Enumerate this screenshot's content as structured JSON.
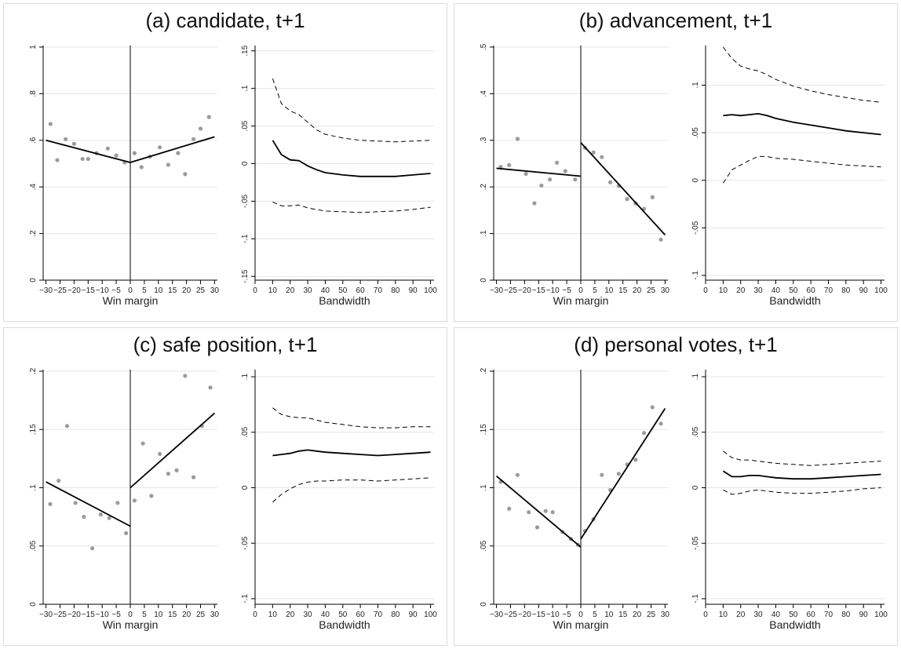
{
  "page": {
    "background": "#ffffff"
  },
  "chart_data": [
    {
      "type": "scatter",
      "title": "(a) candidate, t+1",
      "xlabel": "Win margin",
      "xlim": [
        -31,
        31
      ],
      "ylim": [
        0,
        1
      ],
      "x_ticks": [
        -30,
        -25,
        -20,
        -15,
        -10,
        -5,
        0,
        5,
        10,
        15,
        20,
        25,
        30
      ],
      "x_tick_labels": [
        "−30",
        "−25",
        "−20",
        "−15",
        "−10",
        "−5",
        "0",
        "5",
        "10",
        "15",
        "20",
        "25",
        "30"
      ],
      "y_ticks": [
        0,
        0.2,
        0.4,
        0.6,
        0.8,
        1
      ],
      "y_tick_labels": [
        "0",
        ".2",
        ".4",
        ".6",
        ".8",
        "1"
      ],
      "cutoff": 0,
      "points_x": [
        -28.4,
        -26,
        -23,
        -20,
        -17,
        -15,
        -12,
        -8,
        -5,
        -2,
        1.5,
        4,
        7,
        10.5,
        13.5,
        17,
        19.5,
        22.5,
        25,
        28
      ],
      "points_y": [
        0.67,
        0.515,
        0.605,
        0.585,
        0.52,
        0.52,
        0.545,
        0.565,
        0.535,
        0.505,
        0.545,
        0.485,
        0.53,
        0.57,
        0.495,
        0.545,
        0.455,
        0.605,
        0.65,
        0.7
      ],
      "fit_left": {
        "x": [
          -30,
          0
        ],
        "y": [
          0.6,
          0.505
        ]
      },
      "fit_right": {
        "x": [
          0,
          30
        ],
        "y": [
          0.505,
          0.615
        ]
      }
    },
    {
      "type": "line",
      "xlabel": "Bandwidth",
      "xlim": [
        0,
        102
      ],
      "ylim": [
        -0.155,
        0.155
      ],
      "x_ticks": [
        0,
        10,
        20,
        30,
        40,
        50,
        60,
        70,
        80,
        90,
        100
      ],
      "x_tick_labels": [
        "0",
        "10",
        "20",
        "30",
        "40",
        "50",
        "60",
        "70",
        "80",
        "90",
        "100"
      ],
      "y_ticks": [
        -0.15,
        -0.1,
        -0.05,
        0,
        0.05,
        0.1,
        0.15
      ],
      "y_tick_labels": [
        "-.15",
        "-.1",
        "-.05",
        "0",
        ".05",
        ".1",
        ".15"
      ],
      "x": [
        10,
        15,
        20,
        25,
        30,
        35,
        40,
        50,
        60,
        70,
        80,
        90,
        100
      ],
      "series": [
        {
          "style": "solid",
          "values": [
            0.031,
            0.012,
            0.005,
            0.004,
            -0.003,
            -0.008,
            -0.012,
            -0.015,
            -0.017,
            -0.017,
            -0.017,
            -0.015,
            -0.013
          ]
        },
        {
          "style": "dashed",
          "values": [
            0.113,
            0.08,
            0.07,
            0.065,
            0.055,
            0.045,
            0.039,
            0.034,
            0.031,
            0.03,
            0.029,
            0.03,
            0.031
          ]
        },
        {
          "style": "dashed",
          "values": [
            -0.051,
            -0.056,
            -0.056,
            -0.055,
            -0.059,
            -0.061,
            -0.063,
            -0.064,
            -0.065,
            -0.064,
            -0.063,
            -0.061,
            -0.058
          ]
        }
      ]
    },
    {
      "type": "scatter",
      "title": "(b) advancement, t+1",
      "xlabel": "Win margin",
      "xlim": [
        -31,
        31
      ],
      "ylim": [
        0,
        0.5
      ],
      "x_ticks": [
        -30,
        -25,
        -20,
        -15,
        -10,
        -5,
        0,
        5,
        10,
        15,
        20,
        25,
        30
      ],
      "x_tick_labels": [
        "−30",
        "−25",
        "−20",
        "−15",
        "−10",
        "−5",
        "0",
        "5",
        "10",
        "15",
        "20",
        "25",
        "30"
      ],
      "y_ticks": [
        0,
        0.1,
        0.2,
        0.3,
        0.4,
        0.5
      ],
      "y_tick_labels": [
        "0",
        ".1",
        ".2",
        ".3",
        ".4",
        ".5"
      ],
      "cutoff": 0,
      "points_x": [
        -28.5,
        -25.5,
        -22.5,
        -19.5,
        -16.5,
        -14,
        -11,
        -8.5,
        -5.5,
        -2,
        1.5,
        4.5,
        7.5,
        10.5,
        13.5,
        16.5,
        19.5,
        22.5,
        25.5,
        28.5
      ],
      "points_y": [
        0.243,
        0.247,
        0.303,
        0.228,
        0.165,
        0.203,
        0.216,
        0.252,
        0.234,
        0.216,
        0.284,
        0.274,
        0.264,
        0.21,
        0.202,
        0.174,
        0.165,
        0.153,
        0.178,
        0.087
      ],
      "fit_left": {
        "x": [
          -30,
          0
        ],
        "y": [
          0.24,
          0.223
        ]
      },
      "fit_right": {
        "x": [
          0,
          30
        ],
        "y": [
          0.295,
          0.097
        ]
      }
    },
    {
      "type": "line",
      "xlabel": "Bandwidth",
      "xlim": [
        0,
        102
      ],
      "ylim": [
        -0.105,
        0.14
      ],
      "x_ticks": [
        0,
        10,
        20,
        30,
        40,
        50,
        60,
        70,
        80,
        90,
        100
      ],
      "x_tick_labels": [
        "0",
        "10",
        "20",
        "30",
        "40",
        "50",
        "60",
        "70",
        "80",
        "90",
        "100"
      ],
      "y_ticks": [
        -0.1,
        -0.05,
        0,
        0.05,
        0.1
      ],
      "y_tick_labels": [
        "-.1",
        "-.05",
        "0",
        ".05",
        ".1"
      ],
      "x": [
        10,
        15,
        20,
        25,
        30,
        35,
        40,
        50,
        60,
        70,
        80,
        90,
        100
      ],
      "series": [
        {
          "style": "solid",
          "values": [
            0.068,
            0.069,
            0.068,
            0.069,
            0.07,
            0.068,
            0.065,
            0.061,
            0.058,
            0.055,
            0.052,
            0.05,
            0.048
          ]
        },
        {
          "style": "dashed",
          "values": [
            0.14,
            0.128,
            0.12,
            0.117,
            0.115,
            0.111,
            0.106,
            0.099,
            0.094,
            0.09,
            0.087,
            0.084,
            0.082
          ]
        },
        {
          "style": "dashed",
          "values": [
            -0.003,
            0.011,
            0.016,
            0.021,
            0.025,
            0.025,
            0.023,
            0.022,
            0.02,
            0.018,
            0.016,
            0.015,
            0.014
          ]
        }
      ]
    },
    {
      "type": "scatter",
      "title": "(c) safe position, t+1",
      "xlabel": "Win margin",
      "xlim": [
        -31,
        31
      ],
      "ylim": [
        0,
        0.2
      ],
      "x_ticks": [
        -30,
        -25,
        -20,
        -15,
        -10,
        -5,
        0,
        5,
        10,
        15,
        20,
        25,
        30
      ],
      "x_tick_labels": [
        "−30",
        "−25",
        "−20",
        "−15",
        "−10",
        "−5",
        "0",
        "5",
        "10",
        "15",
        "20",
        "25",
        "30"
      ],
      "y_ticks": [
        0,
        0.05,
        0.1,
        0.15,
        0.2
      ],
      "y_tick_labels": [
        "0",
        ".05",
        ".1",
        ".15",
        ".2"
      ],
      "cutoff": 0,
      "points_x": [
        -28.5,
        -25.5,
        -22.5,
        -19.5,
        -16.5,
        -13.5,
        -10.5,
        -7.5,
        -4.5,
        -1.5,
        1.5,
        4.5,
        7.5,
        10.5,
        13.5,
        16.5,
        19.5,
        22.5,
        25.5,
        28.5
      ],
      "points_y": [
        0.086,
        0.106,
        0.153,
        0.087,
        0.075,
        0.048,
        0.077,
        0.074,
        0.087,
        0.061,
        0.089,
        0.138,
        0.093,
        0.129,
        0.112,
        0.115,
        0.196,
        0.109,
        0.153,
        0.186
      ],
      "fit_left": {
        "x": [
          -30,
          0
        ],
        "y": [
          0.105,
          0.067
        ]
      },
      "fit_right": {
        "x": [
          0,
          30
        ],
        "y": [
          0.1,
          0.164
        ]
      }
    },
    {
      "type": "line",
      "xlabel": "Bandwidth",
      "xlim": [
        0,
        102
      ],
      "ylim": [
        -0.105,
        0.105
      ],
      "x_ticks": [
        0,
        10,
        20,
        30,
        40,
        50,
        60,
        70,
        80,
        90,
        100
      ],
      "x_tick_labels": [
        "0",
        "10",
        "20",
        "30",
        "40",
        "50",
        "60",
        "70",
        "80",
        "90",
        "100"
      ],
      "y_ticks": [
        -0.1,
        -0.05,
        0,
        0.05,
        0.1
      ],
      "y_tick_labels": [
        "-.1",
        "-.05",
        "0",
        ".05",
        ".1"
      ],
      "x": [
        10,
        15,
        20,
        25,
        30,
        35,
        40,
        50,
        60,
        70,
        80,
        90,
        100
      ],
      "series": [
        {
          "style": "solid",
          "values": [
            0.029,
            0.03,
            0.031,
            0.033,
            0.034,
            0.033,
            0.032,
            0.031,
            0.03,
            0.029,
            0.03,
            0.031,
            0.032
          ]
        },
        {
          "style": "dashed",
          "values": [
            0.072,
            0.066,
            0.064,
            0.063,
            0.063,
            0.061,
            0.059,
            0.057,
            0.055,
            0.054,
            0.054,
            0.055,
            0.055
          ]
        },
        {
          "style": "dashed",
          "values": [
            -0.013,
            -0.006,
            -0.001,
            0.003,
            0.005,
            0.006,
            0.006,
            0.007,
            0.007,
            0.006,
            0.007,
            0.008,
            0.009
          ]
        }
      ]
    },
    {
      "type": "scatter",
      "title": "(d) personal votes, t+1",
      "xlabel": "Win margin",
      "xlim": [
        -31,
        31
      ],
      "ylim": [
        0,
        0.2
      ],
      "x_ticks": [
        -30,
        -25,
        -20,
        -15,
        -10,
        -5,
        0,
        5,
        10,
        15,
        20,
        25,
        30
      ],
      "x_tick_labels": [
        "−30",
        "−25",
        "−20",
        "−15",
        "−10",
        "−5",
        "0",
        "5",
        "10",
        "15",
        "20",
        "25",
        "30"
      ],
      "y_ticks": [
        0,
        0.05,
        0.1,
        0.15,
        0.2
      ],
      "y_tick_labels": [
        "0",
        ".05",
        ".1",
        ".15",
        ".2"
      ],
      "cutoff": 0,
      "points_x": [
        -28.5,
        -25.5,
        -22.5,
        -18.5,
        -15.5,
        -12.5,
        -10,
        -6.5,
        -3.5,
        -1,
        1.5,
        4.5,
        7.5,
        10.5,
        13.5,
        16.5,
        19.5,
        22.5,
        25.5,
        28.5
      ],
      "points_y": [
        0.105,
        0.082,
        0.111,
        0.079,
        0.066,
        0.08,
        0.079,
        0.062,
        0.056,
        0.051,
        0.063,
        0.073,
        0.111,
        0.098,
        0.112,
        0.12,
        0.124,
        0.147,
        0.169,
        0.155
      ],
      "fit_left": {
        "x": [
          -30,
          0
        ],
        "y": [
          0.11,
          0.049
        ]
      },
      "fit_right": {
        "x": [
          0,
          30
        ],
        "y": [
          0.056,
          0.168
        ]
      }
    },
    {
      "type": "line",
      "xlabel": "Bandwidth",
      "xlim": [
        0,
        102
      ],
      "ylim": [
        -0.105,
        0.105
      ],
      "x_ticks": [
        0,
        10,
        20,
        30,
        40,
        50,
        60,
        70,
        80,
        90,
        100
      ],
      "x_tick_labels": [
        "0",
        "10",
        "20",
        "30",
        "40",
        "50",
        "60",
        "70",
        "80",
        "90",
        "100"
      ],
      "y_ticks": [
        -0.1,
        -0.05,
        0,
        0.05,
        0.1
      ],
      "y_tick_labels": [
        "-.1",
        "-.05",
        "0",
        ".05",
        ".1"
      ],
      "x": [
        10,
        15,
        20,
        25,
        30,
        35,
        40,
        50,
        60,
        70,
        80,
        90,
        100
      ],
      "series": [
        {
          "style": "solid",
          "values": [
            0.015,
            0.01,
            0.01,
            0.011,
            0.011,
            0.01,
            0.009,
            0.008,
            0.008,
            0.009,
            0.01,
            0.011,
            0.012
          ]
        },
        {
          "style": "dashed",
          "values": [
            0.033,
            0.027,
            0.025,
            0.025,
            0.024,
            0.023,
            0.022,
            0.021,
            0.02,
            0.021,
            0.022,
            0.023,
            0.024
          ]
        },
        {
          "style": "dashed",
          "values": [
            -0.002,
            -0.006,
            -0.005,
            -0.003,
            -0.002,
            -0.003,
            -0.004,
            -0.005,
            -0.005,
            -0.004,
            -0.003,
            -0.001,
            0.0
          ]
        }
      ]
    }
  ]
}
